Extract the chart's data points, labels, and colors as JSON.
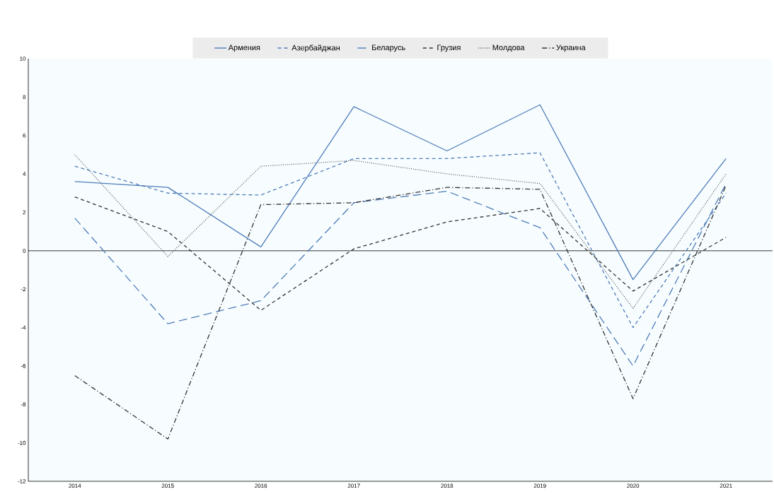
{
  "chart_data": {
    "type": "line",
    "categories": [
      "2014",
      "2015",
      "2016",
      "2017",
      "2018",
      "2019",
      "2020",
      "2021"
    ],
    "series": [
      {
        "name": "Армения",
        "color": "#4f7cb8",
        "line_style": "solid",
        "values": [
          3.6,
          3.3,
          0.2,
          7.5,
          5.2,
          7.6,
          -1.5,
          4.8
        ]
      },
      {
        "name": "Азербайджан",
        "color": "#4f7cb8",
        "line_style": "dashed",
        "values": [
          4.4,
          3.0,
          2.9,
          4.8,
          4.8,
          5.1,
          -4.0,
          3.0
        ]
      },
      {
        "name": "Беларусь",
        "color": "#4f7cb8",
        "line_style": "long dashed",
        "values": [
          1.7,
          -3.8,
          -2.6,
          2.5,
          3.1,
          1.2,
          -6.0,
          3.5
        ]
      },
      {
        "name": "Грузия",
        "color": "#333333",
        "line_style": "dashed",
        "values": [
          2.8,
          1.0,
          -3.1,
          0.1,
          1.5,
          2.2,
          -2.1,
          0.7
        ]
      },
      {
        "name": "Молдова",
        "color": "#555555",
        "line_style": "dotted",
        "values": [
          5.0,
          -0.3,
          4.4,
          4.7,
          4.0,
          3.5,
          -3.0,
          4.0
        ]
      },
      {
        "name": "Украина",
        "color": "#333333",
        "line_style": "dash dot",
        "values": [
          -6.5,
          -9.8,
          2.4,
          2.5,
          3.3,
          3.2,
          -7.7,
          3.4
        ]
      }
    ],
    "ylim": [
      -12,
      10
    ],
    "yticks": [
      -12,
      -10,
      -8,
      -6,
      -4,
      -2,
      0,
      2,
      4,
      6,
      8,
      10
    ],
    "ref_lines": [
      {
        "axis": "y",
        "value": 0,
        "color": "#000000"
      }
    ],
    "grid": false,
    "legend": "top",
    "marker": "none"
  }
}
